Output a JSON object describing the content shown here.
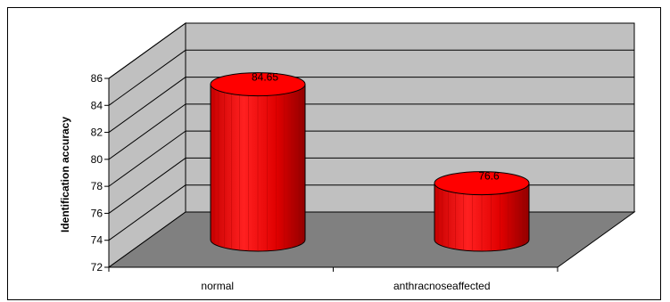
{
  "chart_data": {
    "type": "bar",
    "style": "3d-cylinder",
    "categories": [
      "normal",
      "anthracnoseaffected"
    ],
    "values": [
      84.65,
      76.6
    ],
    "data_labels": [
      "84.65",
      "76.6"
    ],
    "xlabel": "",
    "ylabel": "Identification accuracy",
    "ylim": [
      72,
      86
    ],
    "yticks": [
      "72",
      "74",
      "76",
      "78",
      "80",
      "82",
      "84",
      "86"
    ],
    "grid": true,
    "legend": "none",
    "colors": {
      "bar": "#ff0000",
      "bar_dark": "#b00000",
      "walls": "#c0c0c0",
      "floor": "#808080"
    }
  }
}
